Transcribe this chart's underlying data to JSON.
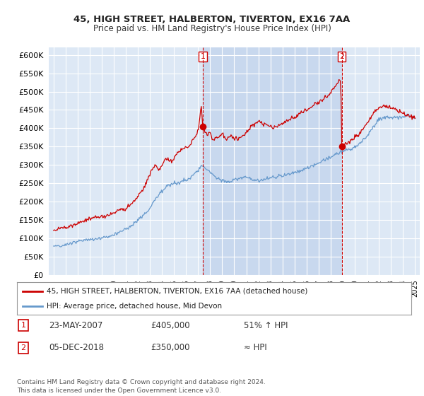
{
  "title": "45, HIGH STREET, HALBERTON, TIVERTON, EX16 7AA",
  "subtitle": "Price paid vs. HM Land Registry's House Price Index (HPI)",
  "page_bg_color": "#ffffff",
  "plot_bg_color": "#dde8f5",
  "shaded_bg_color": "#c8d8ee",
  "red_line_label": "45, HIGH STREET, HALBERTON, TIVERTON, EX16 7AA (detached house)",
  "blue_line_label": "HPI: Average price, detached house, Mid Devon",
  "transaction1_label": "1",
  "transaction1_date": "23-MAY-2007",
  "transaction1_price": "£405,000",
  "transaction1_info": "51% ↑ HPI",
  "transaction2_label": "2",
  "transaction2_date": "05-DEC-2018",
  "transaction2_price": "£350,000",
  "transaction2_info": "≈ HPI",
  "footer": "Contains HM Land Registry data © Crown copyright and database right 2024.\nThis data is licensed under the Open Government Licence v3.0.",
  "ylim": [
    0,
    620000
  ],
  "yticks": [
    0,
    50000,
    100000,
    150000,
    200000,
    250000,
    300000,
    350000,
    400000,
    450000,
    500000,
    550000,
    600000
  ],
  "red_color": "#cc0000",
  "blue_color": "#6699cc",
  "marker1_x": 2007.38,
  "marker1_y": 405000,
  "marker2_x": 2018.92,
  "marker2_y": 350000,
  "xmin": 1995,
  "xmax": 2025
}
